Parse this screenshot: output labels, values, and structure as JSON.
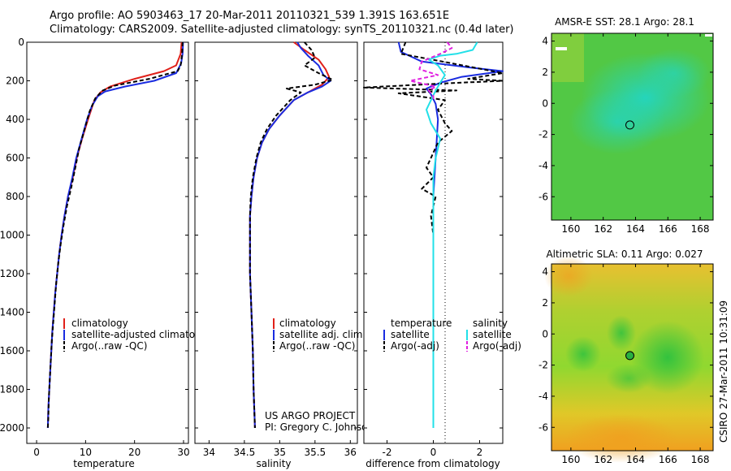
{
  "header": {
    "line1": "Argo profile: AO 5903463_17 20-Mar-2011 20110321_539 1.391S 163.651E",
    "line2": "Climatology: CARS2009. Satellite-adjusted climatology: synTS_20110321.nc (0.4d later)"
  },
  "side_label": "CSIRO 27-Mar-2011 10:31:09",
  "credit": {
    "line1": "US ARGO PROJECT",
    "line2": "PI: Gregory C. Johnson"
  },
  "colors": {
    "climatology": "#e0201a",
    "satellite": "#1a2ce0",
    "argo": "#000000",
    "satellite_diff_sal": "#22e0e8",
    "argo_diff_sal": "#e020e0"
  },
  "chart_data": [
    {
      "type": "line",
      "xlabel": "temperature",
      "xlim": [
        -2,
        31
      ],
      "ylim": [
        2080,
        0
      ],
      "xticks": [
        0,
        10,
        20,
        30
      ],
      "yticks": [
        0,
        200,
        400,
        600,
        800,
        1000,
        1200,
        1400,
        1600,
        1800,
        2000
      ],
      "legend": [
        "climatology",
        "satellite-adjusted climatolgy",
        "Argo(..raw -QC)"
      ],
      "series": [
        {
          "name": "climatology",
          "color": "#e0201a",
          "dash": "",
          "points": [
            [
              29.6,
              0
            ],
            [
              29.4,
              60
            ],
            [
              28.5,
              120
            ],
            [
              26,
              150
            ],
            [
              20,
              190
            ],
            [
              15,
              230
            ],
            [
              13,
              260
            ],
            [
              11.8,
              300
            ],
            [
              10.5,
              400
            ],
            [
              9.3,
              500
            ],
            [
              8.2,
              600
            ],
            [
              7.4,
              700
            ],
            [
              6.4,
              800
            ],
            [
              5.7,
              900
            ],
            [
              5.1,
              1000
            ],
            [
              4.6,
              1100
            ],
            [
              4.2,
              1200
            ],
            [
              3.8,
              1300
            ],
            [
              3.5,
              1400
            ],
            [
              3.2,
              1500
            ],
            [
              3,
              1600
            ],
            [
              2.8,
              1700
            ],
            [
              2.6,
              1800
            ],
            [
              2.4,
              1900
            ],
            [
              2.3,
              2000
            ]
          ]
        },
        {
          "name": "satellite-adjusted climatolgy",
          "color": "#1a2ce0",
          "dash": "",
          "points": [
            [
              29.9,
              0
            ],
            [
              29.8,
              60
            ],
            [
              29.5,
              110
            ],
            [
              28.5,
              160
            ],
            [
              24,
              200
            ],
            [
              18,
              230
            ],
            [
              14,
              255
            ],
            [
              12.5,
              280
            ],
            [
              11.3,
              330
            ],
            [
              10.3,
              400
            ],
            [
              9.2,
              500
            ],
            [
              8.1,
              600
            ],
            [
              7.3,
              700
            ],
            [
              6.4,
              800
            ],
            [
              5.7,
              900
            ],
            [
              5.1,
              1000
            ],
            [
              4.6,
              1100
            ],
            [
              4.2,
              1200
            ],
            [
              3.8,
              1300
            ],
            [
              3.5,
              1400
            ],
            [
              3.2,
              1500
            ],
            [
              3,
              1600
            ],
            [
              2.8,
              1700
            ],
            [
              2.6,
              1800
            ],
            [
              2.4,
              1900
            ],
            [
              2.3,
              2000
            ]
          ]
        },
        {
          "name": "Argo(..raw -QC)",
          "color": "#000000",
          "dash": "5,3",
          "points": [
            [
              29.8,
              0
            ],
            [
              29.7,
              60
            ],
            [
              29.4,
              120
            ],
            [
              28.8,
              150
            ],
            [
              23,
              190
            ],
            [
              16,
              225
            ],
            [
              13.5,
              250
            ],
            [
              12,
              290
            ],
            [
              10.8,
              360
            ],
            [
              9.8,
              450
            ],
            [
              8.7,
              550
            ],
            [
              7.9,
              650
            ],
            [
              7.1,
              750
            ],
            [
              6.2,
              850
            ],
            [
              5.5,
              950
            ],
            [
              4.9,
              1050
            ],
            [
              4.4,
              1150
            ],
            [
              4,
              1250
            ],
            [
              3.7,
              1350
            ],
            [
              3.4,
              1450
            ],
            [
              3.1,
              1550
            ],
            [
              2.9,
              1650
            ],
            [
              2.7,
              1750
            ],
            [
              2.5,
              1850
            ],
            [
              2.4,
              1950
            ],
            [
              2.3,
              2000
            ]
          ]
        }
      ]
    },
    {
      "type": "line",
      "xlabel": "salinity",
      "xlim": [
        33.8,
        36.1
      ],
      "ylim": [
        2080,
        0
      ],
      "xticks": [
        34,
        34.5,
        35,
        35.5,
        36
      ],
      "legend": [
        "climatology",
        "satellite adj. clim.",
        "Argo(..raw -QC)"
      ],
      "series": [
        {
          "name": "climatology",
          "color": "#e0201a",
          "dash": "",
          "points": [
            [
              35.2,
              0
            ],
            [
              35.35,
              40
            ],
            [
              35.55,
              90
            ],
            [
              35.65,
              140
            ],
            [
              35.7,
              180
            ],
            [
              35.6,
              220
            ],
            [
              35.4,
              260
            ],
            [
              35.2,
              300
            ],
            [
              35,
              380
            ],
            [
              34.85,
              450
            ],
            [
              34.75,
              520
            ],
            [
              34.68,
              600
            ],
            [
              34.63,
              700
            ],
            [
              34.6,
              800
            ],
            [
              34.58,
              900
            ],
            [
              34.58,
              1000
            ],
            [
              34.58,
              1200
            ],
            [
              34.6,
              1400
            ],
            [
              34.62,
              1600
            ],
            [
              34.63,
              1800
            ],
            [
              34.65,
              2000
            ]
          ]
        },
        {
          "name": "satellite adj. clim.",
          "color": "#1a2ce0",
          "dash": "",
          "points": [
            [
              35.25,
              0
            ],
            [
              35.3,
              30
            ],
            [
              35.4,
              70
            ],
            [
              35.55,
              120
            ],
            [
              35.62,
              170
            ],
            [
              35.72,
              200
            ],
            [
              35.6,
              230
            ],
            [
              35.4,
              260
            ],
            [
              35.2,
              300
            ],
            [
              35,
              380
            ],
            [
              34.85,
              450
            ],
            [
              34.75,
              520
            ],
            [
              34.68,
              600
            ],
            [
              34.63,
              700
            ],
            [
              34.6,
              800
            ],
            [
              34.58,
              900
            ],
            [
              34.58,
              1000
            ],
            [
              34.58,
              1200
            ],
            [
              34.6,
              1400
            ],
            [
              34.62,
              1600
            ],
            [
              34.63,
              1800
            ],
            [
              34.65,
              2000
            ]
          ]
        },
        {
          "name": "Argo(..raw -QC)",
          "color": "#000000",
          "dash": "5,3",
          "points": [
            [
              35.35,
              0
            ],
            [
              35.45,
              40
            ],
            [
              35.5,
              80
            ],
            [
              35.35,
              120
            ],
            [
              35.55,
              160
            ],
            [
              35.75,
              195
            ],
            [
              35.5,
              220
            ],
            [
              35.1,
              240
            ],
            [
              35.3,
              260
            ],
            [
              35.15,
              300
            ],
            [
              34.95,
              380
            ],
            [
              34.82,
              450
            ],
            [
              34.73,
              520
            ],
            [
              34.67,
              600
            ],
            [
              34.62,
              700
            ],
            [
              34.59,
              800
            ],
            [
              34.58,
              900
            ],
            [
              34.58,
              1000
            ],
            [
              34.58,
              1200
            ],
            [
              34.6,
              1400
            ],
            [
              34.62,
              1600
            ],
            [
              34.63,
              1800
            ],
            [
              34.65,
              2000
            ]
          ]
        }
      ]
    },
    {
      "type": "line",
      "xlabel": "difference from climatology",
      "xlim": [
        -3,
        3
      ],
      "ylim": [
        2080,
        0
      ],
      "xticks": [
        -2,
        0,
        2
      ],
      "legend_headers": [
        "temperature",
        "salinity"
      ],
      "legend": [
        "satellite",
        "Argo(-adj)",
        "satellite",
        "Argo(-adj)"
      ],
      "series": [
        {
          "name": "satellite",
          "color": "#1a2ce0",
          "dash": "",
          "points": [
            [
              -1.5,
              0
            ],
            [
              -1.4,
              50
            ],
            [
              -0.5,
              100
            ],
            [
              1.5,
              130
            ],
            [
              3,
              150
            ],
            [
              1.2,
              180
            ],
            [
              0.3,
              210
            ],
            [
              -0.3,
              240
            ],
            [
              -0.1,
              270
            ],
            [
              0.1,
              320
            ],
            [
              0.2,
              400
            ],
            [
              0.15,
              500
            ],
            [
              0.1,
              600
            ],
            [
              0.05,
              700
            ],
            [
              0,
              800
            ],
            [
              0,
              1000
            ],
            [
              0,
              2000
            ]
          ]
        },
        {
          "name": "Argo(-adj)",
          "color": "#000000",
          "dash": "5,3",
          "points": [
            [
              -1.2,
              0
            ],
            [
              -1.4,
              60
            ],
            [
              0.4,
              100
            ],
            [
              3,
              160
            ],
            [
              1.5,
              190
            ],
            [
              3,
              200
            ],
            [
              0.2,
              215
            ],
            [
              -3,
              235
            ],
            [
              1,
              250
            ],
            [
              -1.5,
              265
            ],
            [
              0.5,
              300
            ],
            [
              0.2,
              350
            ],
            [
              0.5,
              420
            ],
            [
              0.8,
              460
            ],
            [
              0.2,
              520
            ],
            [
              -0.1,
              600
            ],
            [
              -0.3,
              650
            ],
            [
              0,
              700
            ],
            [
              -0.5,
              760
            ],
            [
              0.1,
              800
            ],
            [
              -0.1,
              900
            ],
            [
              0,
              1000
            ],
            [
              0,
              2000
            ]
          ]
        },
        {
          "name": "satellite",
          "color": "#22e0e8",
          "dash": "",
          "points": [
            [
              1.9,
              0
            ],
            [
              1.7,
              40
            ],
            [
              1,
              60
            ],
            [
              0.3,
              70
            ],
            [
              -0.2,
              90
            ],
            [
              0.2,
              120
            ],
            [
              0.5,
              170
            ],
            [
              0.3,
              210
            ],
            [
              0.1,
              250
            ],
            [
              -0.1,
              300
            ],
            [
              -0.3,
              350
            ],
            [
              -0.1,
              420
            ],
            [
              0.3,
              500
            ],
            [
              0.1,
              600
            ],
            [
              0,
              700
            ],
            [
              0,
              800
            ],
            [
              0,
              2000
            ]
          ]
        },
        {
          "name": "Argo(-adj)",
          "color": "#e020e0",
          "dash": "5,3",
          "points": [
            [
              0.6,
              0
            ],
            [
              0.8,
              30
            ],
            [
              0.3,
              60
            ],
            [
              -0.5,
              100
            ],
            [
              -0.6,
              140
            ],
            [
              0.2,
              170
            ],
            [
              -1,
              200
            ],
            [
              0.1,
              230
            ],
            [
              -0.2,
              250
            ],
            [
              0,
              280
            ],
            [
              0,
              300
            ]
          ]
        }
      ]
    },
    {
      "type": "heatmap",
      "title": "AMSR-E SST: 28.1  Argo: 28.1",
      "xlim": [
        158.8,
        168.8
      ],
      "ylim": [
        -7.5,
        4.5
      ],
      "xticks": [
        160,
        162,
        164,
        166,
        168
      ],
      "yticks": [
        -6,
        -4,
        -2,
        0,
        2,
        4
      ],
      "marker": [
        163.651,
        -1.391
      ]
    },
    {
      "type": "heatmap",
      "title": "Altimetric SLA: 0.11  Argo: 0.027",
      "xlim": [
        158.8,
        168.8
      ],
      "ylim": [
        -7.5,
        4.5
      ],
      "xticks": [
        160,
        162,
        164,
        166,
        168
      ],
      "yticks": [
        -6,
        -4,
        -2,
        0,
        2,
        4
      ],
      "marker": [
        163.651,
        -1.391
      ]
    }
  ]
}
